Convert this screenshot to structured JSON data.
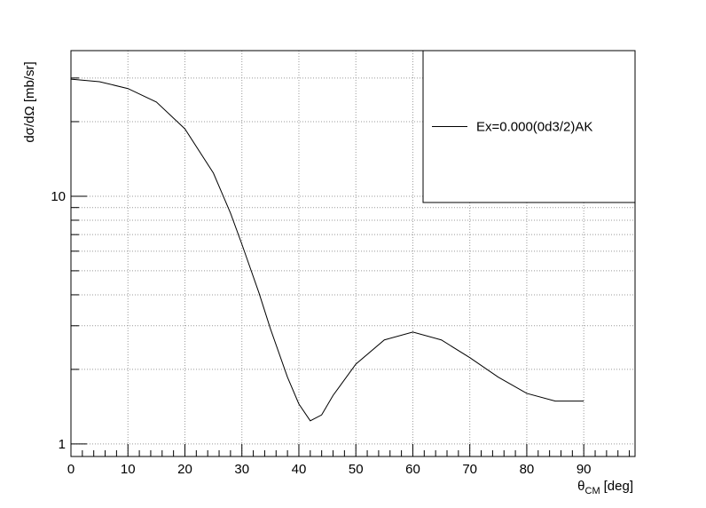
{
  "chart_data": {
    "type": "line",
    "y_label": "dσ/dΩ [mb/sr]",
    "x_label": {
      "symbol": "θ",
      "subscript": "CM",
      "unit": "[deg]"
    },
    "x": [
      0,
      5,
      10,
      15,
      20,
      25,
      28,
      30,
      33,
      35,
      38,
      40,
      42,
      44,
      46,
      50,
      55,
      60,
      65,
      70,
      75,
      80,
      85,
      90
    ],
    "series": [
      {
        "name": "Ex=0.000(0d3/2)AK",
        "color": "#000000",
        "values": [
          29.7,
          29.0,
          27.2,
          24.0,
          18.7,
          12.4,
          8.55,
          6.4,
          4.07,
          2.92,
          1.86,
          1.45,
          1.24,
          1.31,
          1.57,
          2.1,
          2.63,
          2.83,
          2.63,
          2.23,
          1.86,
          1.6,
          1.49,
          1.49
        ]
      }
    ],
    "xlim": [
      0,
      99
    ],
    "ylim": [
      0.89,
      38.7
    ],
    "xticks": [
      0,
      10,
      20,
      30,
      40,
      50,
      60,
      70,
      80,
      90
    ],
    "xminor": [
      2,
      4,
      6,
      8,
      12,
      14,
      16,
      18,
      22,
      24,
      26,
      28,
      32,
      34,
      36,
      38,
      42,
      44,
      46,
      48,
      52,
      54,
      56,
      58,
      62,
      64,
      66,
      68,
      72,
      74,
      76,
      78,
      82,
      84,
      86,
      88,
      92,
      94,
      96,
      98
    ],
    "yticks": [
      1,
      10
    ],
    "yminor": [
      2,
      3,
      4,
      5,
      6,
      7,
      8,
      9,
      20,
      30
    ],
    "log_y": true,
    "grid": true,
    "legend": "upper right"
  }
}
